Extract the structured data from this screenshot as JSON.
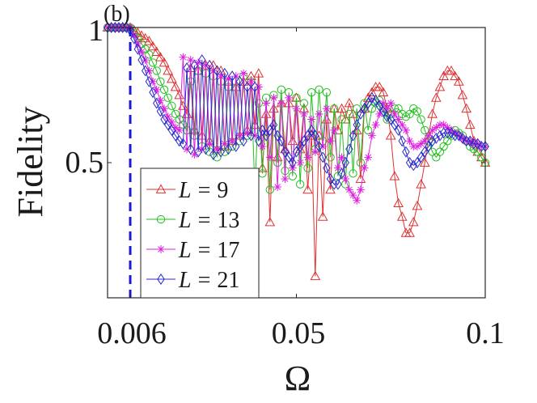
{
  "chart_data": {
    "type": "line",
    "panel_label": "(b)",
    "xlabel": "Ω",
    "ylabel": "Fidelity",
    "xlim": [
      0,
      0.1
    ],
    "ylim": [
      0,
      1
    ],
    "xticks": [
      0.006,
      0.05,
      0.1
    ],
    "xtick_labels": [
      "0.006",
      "0.05",
      "0.1"
    ],
    "yticks": [
      0.5,
      1
    ],
    "ytick_labels": [
      "0.5",
      "1"
    ],
    "reference_line": {
      "x": 0.006,
      "style": "dashed",
      "color": "#1a1ad6"
    },
    "legend": {
      "position": "bottom-left",
      "label_var": "L",
      "label_op": "="
    },
    "series": [
      {
        "name": "L = 9",
        "L": "9",
        "color": "#e03030",
        "marker": "triangle",
        "x": [
          0,
          0.001,
          0.002,
          0.003,
          0.004,
          0.005,
          0.006,
          0.007,
          0.008,
          0.009,
          0.01,
          0.011,
          0.012,
          0.013,
          0.014,
          0.015,
          0.016,
          0.017,
          0.018,
          0.019,
          0.02,
          0.021,
          0.022,
          0.023,
          0.024,
          0.025,
          0.026,
          0.027,
          0.028,
          0.029,
          0.03,
          0.031,
          0.032,
          0.033,
          0.034,
          0.035,
          0.036,
          0.037,
          0.038,
          0.039,
          0.04,
          0.041,
          0.042,
          0.043,
          0.044,
          0.045,
          0.046,
          0.047,
          0.048,
          0.049,
          0.05,
          0.051,
          0.052,
          0.053,
          0.054,
          0.055,
          0.056,
          0.057,
          0.058,
          0.059,
          0.06,
          0.061,
          0.062,
          0.063,
          0.064,
          0.065,
          0.066,
          0.067,
          0.068,
          0.069,
          0.07,
          0.071,
          0.072,
          0.073,
          0.074,
          0.075,
          0.076,
          0.077,
          0.078,
          0.079,
          0.08,
          0.081,
          0.082,
          0.083,
          0.084,
          0.085,
          0.086,
          0.087,
          0.088,
          0.089,
          0.09,
          0.091,
          0.092,
          0.093,
          0.094,
          0.095,
          0.096,
          0.097,
          0.098,
          0.099,
          0.1
        ],
        "y": [
          1,
          1,
          1,
          1,
          1,
          1,
          1,
          0.99,
          0.98,
          0.97,
          0.96,
          0.95,
          0.93,
          0.91,
          0.89,
          0.87,
          0.84,
          0.81,
          0.78,
          0.75,
          0.71,
          0.68,
          0.85,
          0.62,
          0.84,
          0.6,
          0.86,
          0.58,
          0.86,
          0.55,
          0.84,
          0.56,
          0.8,
          0.58,
          0.78,
          0.6,
          0.8,
          0.62,
          0.82,
          0.64,
          0.83,
          0.48,
          0.68,
          0.28,
          0.7,
          0.52,
          0.72,
          0.55,
          0.72,
          0.58,
          0.74,
          0.55,
          0.7,
          0.4,
          0.6,
          0.08,
          0.6,
          0.3,
          0.66,
          0.4,
          0.7,
          0.62,
          0.7,
          0.66,
          0.72,
          0.68,
          0.62,
          0.44,
          0.7,
          0.74,
          0.76,
          0.78,
          0.78,
          0.76,
          0.7,
          0.6,
          0.45,
          0.35,
          0.3,
          0.24,
          0.24,
          0.28,
          0.34,
          0.42,
          0.5,
          0.6,
          0.68,
          0.74,
          0.78,
          0.82,
          0.84,
          0.84,
          0.82,
          0.8,
          0.75,
          0.7,
          0.64,
          0.58,
          0.54,
          0.52,
          0.5
        ]
      },
      {
        "name": "L = 13",
        "L": "13",
        "color": "#22c01e",
        "marker": "circle",
        "x": [
          0,
          0.001,
          0.002,
          0.003,
          0.004,
          0.005,
          0.006,
          0.007,
          0.008,
          0.009,
          0.01,
          0.011,
          0.012,
          0.013,
          0.014,
          0.015,
          0.016,
          0.017,
          0.018,
          0.019,
          0.02,
          0.021,
          0.022,
          0.023,
          0.024,
          0.025,
          0.026,
          0.027,
          0.028,
          0.029,
          0.03,
          0.031,
          0.032,
          0.033,
          0.034,
          0.035,
          0.036,
          0.037,
          0.038,
          0.039,
          0.04,
          0.041,
          0.042,
          0.043,
          0.044,
          0.045,
          0.046,
          0.047,
          0.048,
          0.049,
          0.05,
          0.051,
          0.052,
          0.053,
          0.054,
          0.055,
          0.056,
          0.057,
          0.058,
          0.059,
          0.06,
          0.061,
          0.062,
          0.063,
          0.064,
          0.065,
          0.066,
          0.067,
          0.068,
          0.069,
          0.07,
          0.071,
          0.072,
          0.073,
          0.074,
          0.075,
          0.076,
          0.077,
          0.078,
          0.079,
          0.08,
          0.081,
          0.082,
          0.083,
          0.084,
          0.085,
          0.086,
          0.087,
          0.088,
          0.089,
          0.09,
          0.091,
          0.092,
          0.093,
          0.094,
          0.095,
          0.096,
          0.097,
          0.098,
          0.099,
          0.1
        ],
        "y": [
          1,
          1,
          1,
          1,
          1,
          1,
          1,
          0.98,
          0.96,
          0.94,
          0.92,
          0.9,
          0.87,
          0.84,
          0.8,
          0.77,
          0.74,
          0.71,
          0.68,
          0.66,
          0.64,
          0.62,
          0.8,
          0.6,
          0.84,
          0.56,
          0.83,
          0.54,
          0.82,
          0.52,
          0.8,
          0.54,
          0.78,
          0.56,
          0.8,
          0.58,
          0.82,
          0.6,
          0.8,
          0.4,
          0.72,
          0.46,
          0.74,
          0.4,
          0.75,
          0.5,
          0.77,
          0.47,
          0.76,
          0.45,
          0.74,
          0.42,
          0.72,
          0.48,
          0.76,
          0.55,
          0.77,
          0.58,
          0.76,
          0.52,
          0.7,
          0.45,
          0.66,
          0.42,
          0.68,
          0.46,
          0.7,
          0.5,
          0.72,
          0.62,
          0.7,
          0.72,
          0.73,
          0.7,
          0.66,
          0.68,
          0.7,
          0.7,
          0.68,
          0.67,
          0.68,
          0.7,
          0.69,
          0.66,
          0.62,
          0.58,
          0.54,
          0.52,
          0.54,
          0.56,
          0.58,
          0.6,
          0.62,
          0.61,
          0.6,
          0.58,
          0.56,
          0.55,
          0.54,
          0.52,
          0.5
        ]
      },
      {
        "name": "L = 17",
        "L": "17",
        "color": "#e020e0",
        "marker": "asterisk",
        "x": [
          0,
          0.001,
          0.002,
          0.003,
          0.004,
          0.005,
          0.006,
          0.007,
          0.008,
          0.009,
          0.01,
          0.011,
          0.012,
          0.013,
          0.014,
          0.015,
          0.016,
          0.017,
          0.018,
          0.019,
          0.02,
          0.021,
          0.022,
          0.023,
          0.024,
          0.025,
          0.026,
          0.027,
          0.028,
          0.029,
          0.03,
          0.031,
          0.032,
          0.033,
          0.034,
          0.035,
          0.036,
          0.037,
          0.038,
          0.039,
          0.04,
          0.041,
          0.042,
          0.043,
          0.044,
          0.045,
          0.046,
          0.047,
          0.048,
          0.049,
          0.05,
          0.051,
          0.052,
          0.053,
          0.054,
          0.055,
          0.056,
          0.057,
          0.058,
          0.059,
          0.06,
          0.061,
          0.062,
          0.063,
          0.064,
          0.065,
          0.066,
          0.067,
          0.068,
          0.069,
          0.07,
          0.071,
          0.072,
          0.073,
          0.074,
          0.075,
          0.076,
          0.077,
          0.078,
          0.079,
          0.08,
          0.081,
          0.082,
          0.083,
          0.084,
          0.085,
          0.086,
          0.087,
          0.088,
          0.089,
          0.09,
          0.091,
          0.092,
          0.093,
          0.094,
          0.095,
          0.096,
          0.097,
          0.098,
          0.099,
          0.1
        ],
        "y": [
          1,
          1,
          1,
          1,
          1,
          1,
          1,
          0.97,
          0.94,
          0.91,
          0.88,
          0.84,
          0.8,
          0.77,
          0.73,
          0.7,
          0.67,
          0.65,
          0.63,
          0.62,
          0.89,
          0.55,
          0.88,
          0.53,
          0.87,
          0.55,
          0.86,
          0.57,
          0.84,
          0.55,
          0.82,
          0.57,
          0.81,
          0.58,
          0.82,
          0.6,
          0.83,
          0.61,
          0.8,
          0.6,
          0.78,
          0.56,
          0.72,
          0.52,
          0.74,
          0.41,
          0.72,
          0.44,
          0.74,
          0.48,
          0.7,
          0.5,
          0.68,
          0.52,
          0.66,
          0.54,
          0.68,
          0.56,
          0.7,
          0.58,
          0.62,
          0.48,
          0.52,
          0.44,
          0.4,
          0.38,
          0.36,
          0.4,
          0.48,
          0.52,
          0.6,
          0.64,
          0.68,
          0.72,
          0.7,
          0.72,
          0.68,
          0.66,
          0.64,
          0.62,
          0.58,
          0.56,
          0.56,
          0.57,
          0.58,
          0.6,
          0.62,
          0.63,
          0.64,
          0.64,
          0.63,
          0.62,
          0.61,
          0.6,
          0.59,
          0.58,
          0.58,
          0.57,
          0.57,
          0.56,
          0.56
        ]
      },
      {
        "name": "L = 21",
        "L": "21",
        "color": "#2a2ad0",
        "marker": "diamond",
        "x": [
          0,
          0.001,
          0.002,
          0.003,
          0.004,
          0.005,
          0.006,
          0.007,
          0.008,
          0.009,
          0.01,
          0.011,
          0.012,
          0.013,
          0.014,
          0.015,
          0.016,
          0.017,
          0.018,
          0.019,
          0.02,
          0.021,
          0.022,
          0.023,
          0.024,
          0.025,
          0.026,
          0.027,
          0.028,
          0.029,
          0.03,
          0.031,
          0.032,
          0.033,
          0.034,
          0.035,
          0.036,
          0.037,
          0.038,
          0.039,
          0.04,
          0.041,
          0.042,
          0.043,
          0.044,
          0.045,
          0.046,
          0.047,
          0.048,
          0.049,
          0.05,
          0.051,
          0.052,
          0.053,
          0.054,
          0.055,
          0.056,
          0.057,
          0.058,
          0.059,
          0.06,
          0.061,
          0.062,
          0.063,
          0.064,
          0.065,
          0.066,
          0.067,
          0.068,
          0.069,
          0.07,
          0.071,
          0.072,
          0.073,
          0.074,
          0.075,
          0.076,
          0.077,
          0.078,
          0.079,
          0.08,
          0.081,
          0.082,
          0.083,
          0.084,
          0.085,
          0.086,
          0.087,
          0.088,
          0.089,
          0.09,
          0.091,
          0.092,
          0.093,
          0.094,
          0.095,
          0.096,
          0.097,
          0.098,
          0.099,
          0.1
        ],
        "y": [
          1,
          1,
          1,
          1,
          1,
          1,
          0.99,
          0.96,
          0.92,
          0.88,
          0.84,
          0.8,
          0.76,
          0.72,
          0.69,
          0.66,
          0.64,
          0.62,
          0.6,
          0.58,
          0.57,
          0.85,
          0.55,
          0.86,
          0.54,
          0.88,
          0.55,
          0.86,
          0.53,
          0.84,
          0.54,
          0.83,
          0.55,
          0.82,
          0.56,
          0.8,
          0.58,
          0.78,
          0.6,
          0.78,
          0.58,
          0.62,
          0.6,
          0.62,
          0.64,
          0.6,
          0.58,
          0.54,
          0.52,
          0.5,
          0.54,
          0.56,
          0.58,
          0.6,
          0.62,
          0.6,
          0.56,
          0.52,
          0.48,
          0.44,
          0.42,
          0.42,
          0.46,
          0.5,
          0.55,
          0.6,
          0.64,
          0.68,
          0.7,
          0.72,
          0.74,
          0.73,
          0.71,
          0.69,
          0.67,
          0.66,
          0.64,
          0.62,
          0.58,
          0.54,
          0.5,
          0.49,
          0.5,
          0.52,
          0.54,
          0.56,
          0.58,
          0.59,
          0.6,
          0.61,
          0.61,
          0.61,
          0.6,
          0.6,
          0.59,
          0.58,
          0.58,
          0.57,
          0.57,
          0.56,
          0.56
        ]
      }
    ]
  }
}
